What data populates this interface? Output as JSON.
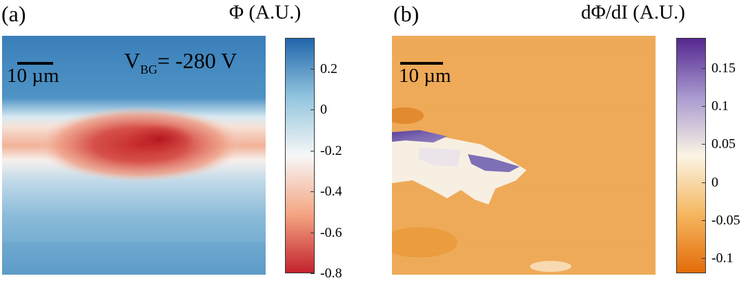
{
  "chart_data": [
    {
      "type": "heatmap",
      "panel": "(a)",
      "colorbar_label": "Φ (A.U.)",
      "colorbar_ticks": [
        "0.2",
        "0",
        "-0.2",
        "-0.4",
        "-0.6",
        "-0.8"
      ],
      "colorbar_range": [
        -0.8,
        0.35
      ],
      "colormap": [
        "#c2232d",
        "#f4a582",
        "#f7f7f7",
        "#92c5de",
        "#2166ac"
      ],
      "scale_bar": "10 µm",
      "annotation": {
        "prefix": "V",
        "sub": "BG",
        "suffix": "= -280 V"
      }
    },
    {
      "type": "heatmap",
      "panel": "(b)",
      "colorbar_label": "dΦ/dI (A.U.)",
      "colorbar_ticks": [
        "0.15",
        "0.1",
        "0.05",
        "0",
        "-0.05",
        "-0.1"
      ],
      "colorbar_range": [
        -0.12,
        0.19
      ],
      "colormap": [
        "#e36c09",
        "#f5b760",
        "#fbf4e4",
        "#a99ad0",
        "#54278f"
      ],
      "scale_bar": "10 µm"
    }
  ]
}
